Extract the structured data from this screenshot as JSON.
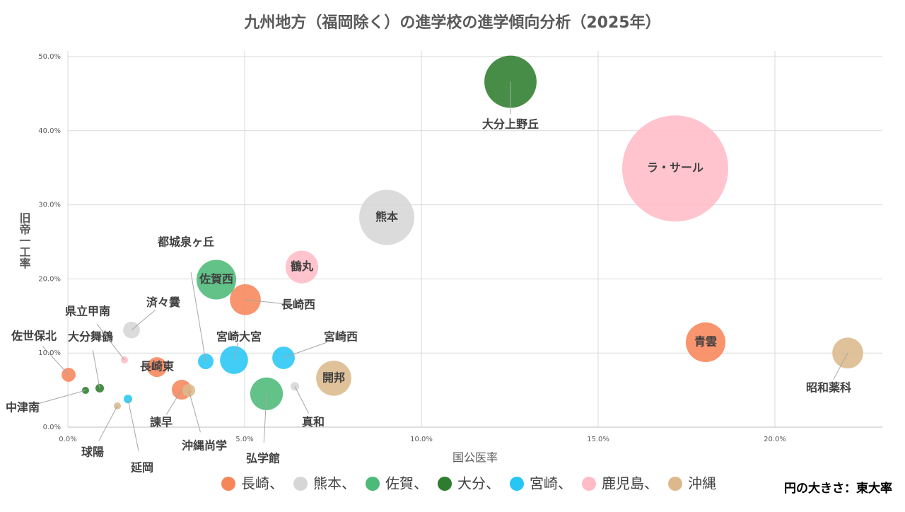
{
  "chart_data": {
    "type": "bubble",
    "title": "九州地方（福岡除く）の進学校の進学傾向分析（2025年）",
    "x_label": "国公医率",
    "y_label": "旧帝一工率",
    "size_note": "円の大きさ：東大率",
    "xlim": [
      0,
      23.04
    ],
    "ylim": [
      0,
      50.76
    ],
    "xticks": [
      {
        "value": 0,
        "label": "0.0%"
      },
      {
        "value": 5,
        "label": "5.0%"
      },
      {
        "value": 10,
        "label": "10.0%"
      },
      {
        "value": 15,
        "label": "15.0%"
      },
      {
        "value": 20,
        "label": "20.0%"
      }
    ],
    "yticks": [
      {
        "value": 0,
        "label": "0.0%"
      },
      {
        "value": 10,
        "label": "10.0%"
      },
      {
        "value": 20,
        "label": "20.0%"
      },
      {
        "value": 30,
        "label": "30.0%"
      },
      {
        "value": 40,
        "label": "40.0%"
      },
      {
        "value": 50,
        "label": "50.0%"
      }
    ],
    "grid": true,
    "series": [
      {
        "name": "長崎、",
        "color": "#f7855a",
        "points": [
          {
            "label": "青雲",
            "x": 18.04,
            "y": 11.45,
            "size": 2.8
          },
          {
            "label": "長崎西",
            "x": 5.02,
            "y": 17.2,
            "size": 1.7
          },
          {
            "label": "長崎東",
            "x": 2.52,
            "y": 8.1,
            "size": 0.7
          },
          {
            "label": "諫早",
            "x": 3.22,
            "y": 5.05,
            "size": 0.7
          },
          {
            "label": "佐世保北",
            "x": 0.02,
            "y": 7.06,
            "size": 0.35
          }
        ]
      },
      {
        "name": "熊本、",
        "color": "#d6d6d6",
        "points": [
          {
            "label": "熊本",
            "x": 9.02,
            "y": 28.3,
            "size": 5.4
          },
          {
            "label": "済々黌",
            "x": 1.8,
            "y": 13.1,
            "size": 0.5
          },
          {
            "label": "真和",
            "x": 6.42,
            "y": 5.5,
            "size": 0.13
          }
        ]
      },
      {
        "name": "佐賀、",
        "color": "#4cba78",
        "points": [
          {
            "label": "佐賀西",
            "x": 4.2,
            "y": 19.9,
            "size": 2.8
          },
          {
            "label": "弘学館",
            "x": 5.62,
            "y": 4.5,
            "size": 1.9
          }
        ]
      },
      {
        "name": "大分、",
        "color": "#2e7d2e",
        "points": [
          {
            "label": "大分上野丘",
            "x": 12.52,
            "y": 46.6,
            "size": 4.85
          },
          {
            "label": "大分舞鶴",
            "x": 0.9,
            "y": 5.25,
            "size": 0.13
          },
          {
            "label": "中津南",
            "x": 0.5,
            "y": 4.96,
            "size": 0.09
          }
        ]
      },
      {
        "name": "宮崎、",
        "color": "#27c6f5",
        "points": [
          {
            "label": "宮崎大宮",
            "x": 4.7,
            "y": 9.06,
            "size": 1.4
          },
          {
            "label": "宮崎西",
            "x": 6.1,
            "y": 9.35,
            "size": 0.9
          },
          {
            "label": "都城泉ヶ丘",
            "x": 3.9,
            "y": 8.87,
            "size": 0.43
          },
          {
            "label": "延岡",
            "x": 1.7,
            "y": 3.8,
            "size": 0.13
          }
        ]
      },
      {
        "name": "鹿児島、",
        "color": "#ffbcc6",
        "points": [
          {
            "label": "ラ・サール",
            "x": 17.18,
            "y": 34.9,
            "size": 20
          },
          {
            "label": "鶴丸",
            "x": 6.62,
            "y": 21.6,
            "size": 1.9
          },
          {
            "label": "県立甲南",
            "x": 1.6,
            "y": 9.06,
            "size": 0.09
          }
        ]
      },
      {
        "name": "沖縄",
        "color": "#dcb98c",
        "points": [
          {
            "label": "昭和薬科",
            "x": 22.06,
            "y": 10.0,
            "size": 1.7
          },
          {
            "label": "開邦",
            "x": 7.52,
            "y": 6.6,
            "size": 2.2
          },
          {
            "label": "沖縄尚学",
            "x": 3.42,
            "y": 4.96,
            "size": 0.29
          },
          {
            "label": "球陽",
            "x": 1.4,
            "y": 2.86,
            "size": 0.09
          }
        ]
      }
    ]
  }
}
